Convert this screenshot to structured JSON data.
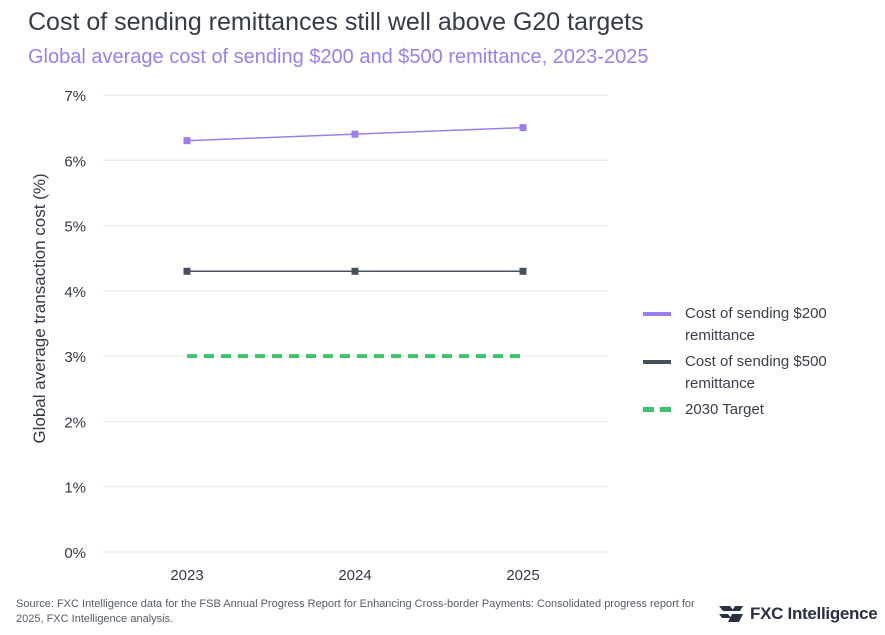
{
  "header": {
    "title": "Cost of sending remittances still well above G20 targets",
    "subtitle": "Global average cost of sending $200 and $500 remittance, 2023-2025"
  },
  "colors": {
    "series_200": "#9b7df2",
    "series_500": "#4a4f5e",
    "target": "#3cc46a",
    "grid": "#e3e5e8",
    "text": "#333a45"
  },
  "chart_data": {
    "type": "line",
    "title": "Cost of sending remittances still well above G20 targets",
    "subtitle": "Global average cost of sending $200 and $500 remittance, 2023-2025",
    "xlabel": "",
    "ylabel": "Global average transaction cost (%)",
    "categories": [
      "2023",
      "2024",
      "2025"
    ],
    "ylim": [
      0,
      7
    ],
    "y_ticks": [
      0,
      1,
      2,
      3,
      4,
      5,
      6,
      7
    ],
    "y_tick_labels": [
      "0%",
      "1%",
      "2%",
      "3%",
      "4%",
      "5%",
      "6%",
      "7%"
    ],
    "grid": true,
    "legend_position": "right",
    "series": [
      {
        "name": "Cost of sending $200 remittance",
        "values": [
          6.3,
          6.4,
          6.5
        ],
        "style": "solid-markers"
      },
      {
        "name": "Cost of sending $500 remittance",
        "values": [
          4.3,
          4.3,
          4.3
        ],
        "style": "solid-markers"
      },
      {
        "name": "2030 Target",
        "values": [
          3.0,
          3.0,
          3.0
        ],
        "style": "dashed"
      }
    ]
  },
  "legend": {
    "items": [
      {
        "label": "Cost of sending $200 remittance"
      },
      {
        "label": "Cost of sending $500 remittance"
      },
      {
        "label": "2030 Target"
      }
    ]
  },
  "footer": {
    "source": "Source: FXC Intelligence data for the FSB Annual Progress Report for Enhancing Cross-border Payments: Consolidated progress report for 2025, FXC Intelligence analysis.",
    "brand": "FXC Intelligence"
  }
}
